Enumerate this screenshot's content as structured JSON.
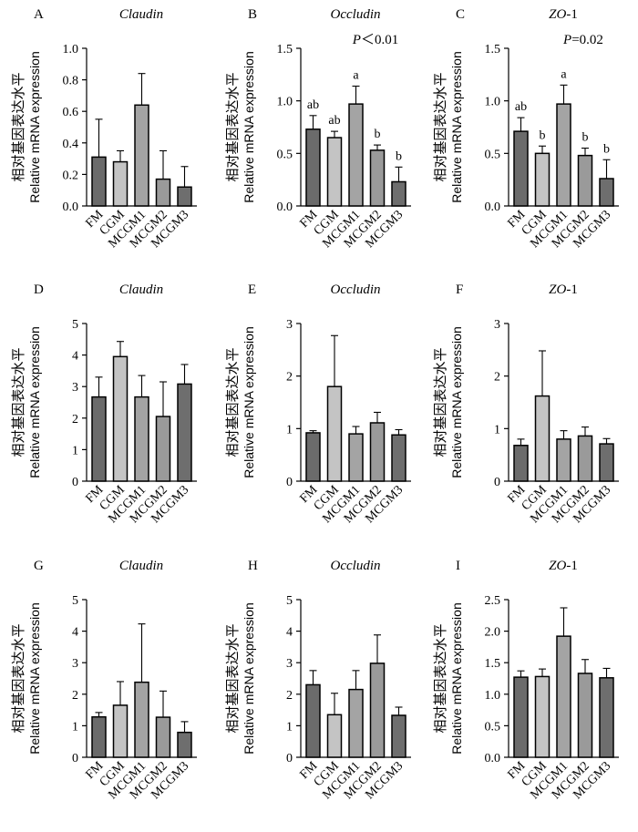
{
  "figure": {
    "y_label_cn": "相对基因表达水平",
    "y_label_en": "Relative mRNA expression"
  },
  "chart_data": [
    {
      "panel": "A",
      "type": "bar",
      "title": "Claudin",
      "title_italic": true,
      "stat": "",
      "categories": [
        "FM",
        "CGM",
        "MCGM1",
        "MCGM2",
        "MCGM3"
      ],
      "values": [
        0.31,
        0.28,
        0.64,
        0.17,
        0.12
      ],
      "errors": [
        0.24,
        0.07,
        0.2,
        0.18,
        0.13
      ],
      "sig_letters": [],
      "ylim": [
        0,
        1.0
      ],
      "yticks": [
        "0.0",
        "0.2",
        "0.4",
        "0.6",
        "0.8",
        "1.0"
      ],
      "colors": [
        "#6b6b6b",
        "#c4c4c4",
        "#a4a4a4",
        "#9a9a9a",
        "#6e6e6e"
      ]
    },
    {
      "panel": "B",
      "type": "bar",
      "title": "Occludin",
      "title_italic": true,
      "stat": "P＜0.01",
      "categories": [
        "FM",
        "CGM",
        "MCGM1",
        "MCGM2",
        "MCGM3"
      ],
      "values": [
        0.73,
        0.65,
        0.97,
        0.53,
        0.23
      ],
      "errors": [
        0.13,
        0.06,
        0.17,
        0.05,
        0.14
      ],
      "sig_letters": [
        "ab",
        "ab",
        "a",
        "b",
        "b"
      ],
      "ylim": [
        0,
        1.5
      ],
      "yticks": [
        "0.0",
        "0.5",
        "1.0",
        "1.5"
      ],
      "colors": [
        "#6b6b6b",
        "#c4c4c4",
        "#a4a4a4",
        "#9a9a9a",
        "#6e6e6e"
      ]
    },
    {
      "panel": "C",
      "type": "bar",
      "title": "ZO-1",
      "title_italic": true,
      "stat": "P=0.02",
      "categories": [
        "FM",
        "CGM",
        "MCGM1",
        "MCGM2",
        "MCGM3"
      ],
      "values": [
        0.71,
        0.5,
        0.97,
        0.48,
        0.26
      ],
      "errors": [
        0.13,
        0.07,
        0.18,
        0.07,
        0.18
      ],
      "sig_letters": [
        "ab",
        "b",
        "a",
        "b",
        "b"
      ],
      "ylim": [
        0,
        1.5
      ],
      "yticks": [
        "0.0",
        "0.5",
        "1.0",
        "1.5"
      ],
      "colors": [
        "#6b6b6b",
        "#c4c4c4",
        "#a4a4a4",
        "#9a9a9a",
        "#6e6e6e"
      ]
    },
    {
      "panel": "D",
      "type": "bar",
      "title": "Claudin",
      "title_italic": true,
      "stat": "",
      "categories": [
        "FM",
        "CGM",
        "MCGM1",
        "MCGM2",
        "MCGM3"
      ],
      "values": [
        2.67,
        3.95,
        2.67,
        2.05,
        3.08
      ],
      "errors": [
        0.63,
        0.48,
        0.68,
        1.1,
        0.62
      ],
      "sig_letters": [],
      "ylim": [
        0,
        5
      ],
      "yticks": [
        "0",
        "1",
        "2",
        "3",
        "4",
        "5"
      ],
      "colors": [
        "#6b6b6b",
        "#c4c4c4",
        "#a4a4a4",
        "#9a9a9a",
        "#6e6e6e"
      ]
    },
    {
      "panel": "E",
      "type": "bar",
      "title": "Occludin",
      "title_italic": true,
      "stat": "",
      "categories": [
        "FM",
        "CGM",
        "MCGM1",
        "MCGM2",
        "MCGM3"
      ],
      "values": [
        0.92,
        1.8,
        0.9,
        1.11,
        0.88
      ],
      "errors": [
        0.04,
        0.97,
        0.14,
        0.2,
        0.1
      ],
      "sig_letters": [],
      "ylim": [
        0,
        3
      ],
      "yticks": [
        "0",
        "1",
        "2",
        "3"
      ],
      "colors": [
        "#6b6b6b",
        "#c4c4c4",
        "#a4a4a4",
        "#9a9a9a",
        "#6e6e6e"
      ]
    },
    {
      "panel": "F",
      "type": "bar",
      "title": "ZO-1",
      "title_italic": true,
      "stat": "",
      "categories": [
        "FM",
        "CGM",
        "MCGM1",
        "MCGM2",
        "MCGM3"
      ],
      "values": [
        0.68,
        1.62,
        0.8,
        0.86,
        0.71
      ],
      "errors": [
        0.12,
        0.86,
        0.16,
        0.17,
        0.1
      ],
      "sig_letters": [],
      "ylim": [
        0,
        3
      ],
      "yticks": [
        "0",
        "1",
        "2",
        "3"
      ],
      "colors": [
        "#6b6b6b",
        "#c4c4c4",
        "#a4a4a4",
        "#9a9a9a",
        "#6e6e6e"
      ]
    },
    {
      "panel": "G",
      "type": "bar",
      "title": "Claudin",
      "title_italic": true,
      "stat": "",
      "categories": [
        "FM",
        "CGM",
        "MCGM1",
        "MCGM2",
        "MCGM3"
      ],
      "values": [
        1.28,
        1.65,
        2.38,
        1.27,
        0.79
      ],
      "errors": [
        0.14,
        0.75,
        1.85,
        0.83,
        0.34
      ],
      "sig_letters": [],
      "ylim": [
        0,
        5
      ],
      "yticks": [
        "0",
        "1",
        "2",
        "3",
        "4",
        "5"
      ],
      "colors": [
        "#6b6b6b",
        "#c4c4c4",
        "#a4a4a4",
        "#9a9a9a",
        "#6e6e6e"
      ]
    },
    {
      "panel": "H",
      "type": "bar",
      "title": "Occludin",
      "title_italic": true,
      "stat": "",
      "categories": [
        "FM",
        "CGM",
        "MCGM1",
        "MCGM2",
        "MCGM3"
      ],
      "values": [
        2.3,
        1.35,
        2.15,
        2.98,
        1.33
      ],
      "errors": [
        0.45,
        0.68,
        0.6,
        0.9,
        0.26
      ],
      "sig_letters": [],
      "ylim": [
        0,
        5
      ],
      "yticks": [
        "0",
        "1",
        "2",
        "3",
        "4",
        "5"
      ],
      "colors": [
        "#6b6b6b",
        "#c4c4c4",
        "#a4a4a4",
        "#9a9a9a",
        "#6e6e6e"
      ]
    },
    {
      "panel": "I",
      "type": "bar",
      "title": "ZO-1",
      "title_italic": true,
      "stat": "",
      "categories": [
        "FM",
        "CGM",
        "MCGM1",
        "MCGM2",
        "MCGM3"
      ],
      "values": [
        1.27,
        1.28,
        1.92,
        1.33,
        1.26
      ],
      "errors": [
        0.1,
        0.12,
        0.45,
        0.22,
        0.15
      ],
      "sig_letters": [],
      "ylim": [
        0,
        2.5
      ],
      "yticks": [
        "0.0",
        "0.5",
        "1.0",
        "1.5",
        "2.0",
        "2.5"
      ],
      "colors": [
        "#6b6b6b",
        "#c4c4c4",
        "#a4a4a4",
        "#9a9a9a",
        "#6e6e6e"
      ]
    }
  ]
}
